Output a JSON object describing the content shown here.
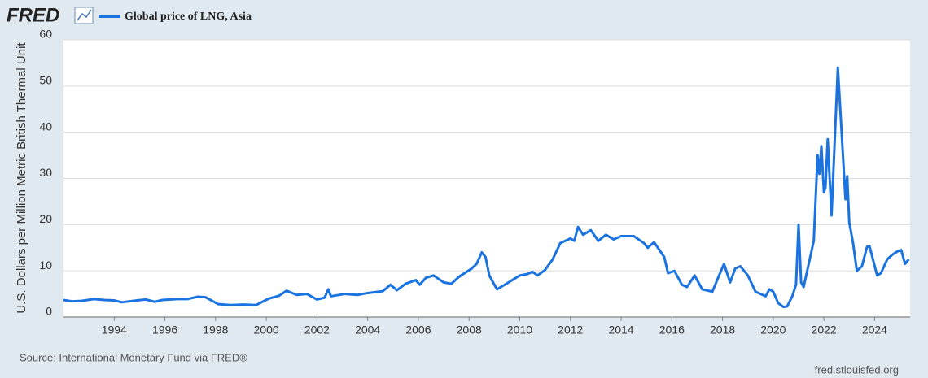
{
  "logo": "FRED",
  "source": "Source: International Monetary Fund via FRED®",
  "url": "fred.stlouisfed.org",
  "chart_data": {
    "type": "line",
    "y_label": "U.S. Dollars per Million Metric British Thermal Unit",
    "xlim": [
      1992,
      2025.4
    ],
    "xticks": [
      1994,
      1996,
      1998,
      2000,
      2002,
      2004,
      2006,
      2008,
      2010,
      2012,
      2014,
      2016,
      2018,
      2020,
      2022,
      2024
    ],
    "ylim": [
      0,
      60
    ],
    "yticks": [
      0,
      10,
      20,
      30,
      40,
      50,
      60
    ],
    "grid": true,
    "x": [
      1992.0,
      1992.35,
      1992.7,
      1993.2,
      1993.6,
      1994.0,
      1994.3,
      1994.9,
      1995.25,
      1995.6,
      1995.9,
      1996.5,
      1996.9,
      1997.3,
      1997.6,
      1998.1,
      1998.6,
      1999.1,
      1999.6,
      2000.1,
      2000.5,
      2000.8,
      2001.2,
      2001.6,
      2002.0,
      2002.3,
      2002.45,
      2002.55,
      2003.1,
      2003.6,
      2004.0,
      2004.6,
      2004.9,
      2005.15,
      2005.5,
      2005.9,
      2006.05,
      2006.3,
      2006.6,
      2007.0,
      2007.3,
      2007.6,
      2008.1,
      2008.3,
      2008.5,
      2008.65,
      2008.8,
      2009.1,
      2009.5,
      2010.0,
      2010.3,
      2010.5,
      2010.7,
      2011.0,
      2011.3,
      2011.6,
      2012.0,
      2012.15,
      2012.3,
      2012.5,
      2012.8,
      2013.1,
      2013.4,
      2013.7,
      2014.0,
      2014.5,
      2014.9,
      2015.05,
      2015.3,
      2015.7,
      2015.85,
      2016.1,
      2016.4,
      2016.6,
      2016.9,
      2017.2,
      2017.6,
      2017.9,
      2018.06,
      2018.3,
      2018.5,
      2018.7,
      2019.0,
      2019.3,
      2019.7,
      2019.85,
      2020.0,
      2020.2,
      2020.4,
      2020.55,
      2020.75,
      2020.9,
      2021.0,
      2021.1,
      2021.2,
      2021.5,
      2021.6,
      2021.75,
      2021.82,
      2021.9,
      2022.0,
      2022.06,
      2022.15,
      2022.3,
      2022.55,
      2022.72,
      2022.85,
      2022.92,
      2023.0,
      2023.15,
      2023.3,
      2023.5,
      2023.7,
      2023.8,
      2024.1,
      2024.25,
      2024.5,
      2024.7,
      2024.9,
      2025.05,
      2025.2,
      2025.35
    ],
    "series": [
      {
        "name": "Global price of LNG, Asia",
        "color": "#1a73e0",
        "values": [
          3.7,
          3.4,
          3.5,
          3.9,
          3.7,
          3.6,
          3.2,
          3.6,
          3.8,
          3.3,
          3.7,
          3.9,
          3.9,
          4.4,
          4.3,
          2.8,
          2.6,
          2.7,
          2.6,
          4.0,
          4.6,
          5.7,
          4.8,
          5.0,
          3.8,
          4.2,
          6.0,
          4.5,
          5.0,
          4.8,
          5.2,
          5.6,
          7.0,
          5.8,
          7.2,
          8.0,
          7.0,
          8.5,
          9.0,
          7.5,
          7.2,
          8.7,
          10.5,
          11.5,
          14.0,
          13.0,
          9.0,
          6.0,
          7.3,
          9.0,
          9.3,
          9.8,
          9.0,
          10.2,
          12.5,
          16.0,
          17.0,
          16.5,
          19.5,
          17.8,
          18.8,
          16.5,
          17.8,
          16.8,
          17.5,
          17.5,
          16.0,
          15.0,
          16.2,
          13.0,
          9.5,
          10.0,
          7.0,
          6.5,
          9.0,
          6.0,
          5.5,
          9.5,
          11.5,
          7.5,
          10.5,
          11.0,
          9.0,
          5.5,
          4.5,
          6.0,
          5.5,
          3.0,
          2.2,
          2.3,
          4.5,
          7.0,
          20.0,
          7.5,
          6.5,
          14.0,
          16.5,
          35.0,
          31.0,
          37.0,
          27.0,
          28.0,
          38.5,
          22.0,
          54.0,
          38.0,
          25.5,
          30.5,
          20.5,
          16.0,
          10.0,
          11.0,
          15.2,
          15.3,
          9.0,
          9.5,
          12.5,
          13.5,
          14.2,
          14.5,
          11.5,
          12.5
        ]
      }
    ]
  }
}
